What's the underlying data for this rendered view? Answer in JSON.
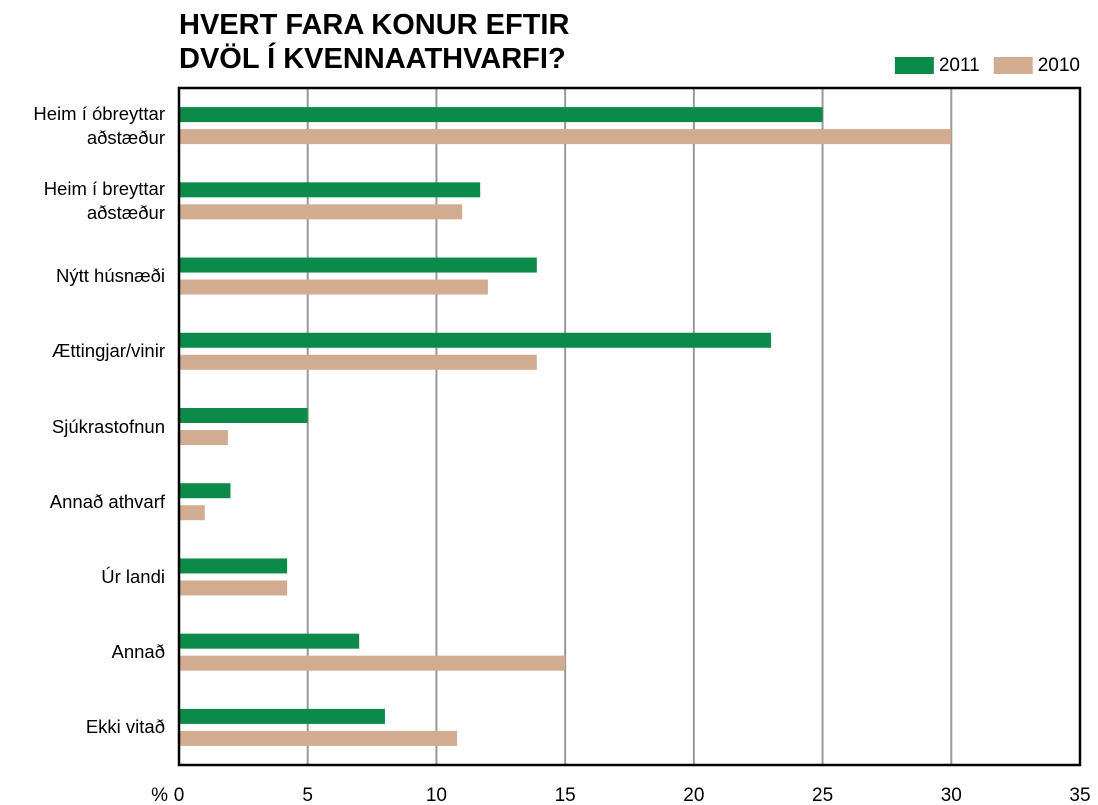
{
  "chart_data": {
    "type": "bar",
    "orientation": "horizontal",
    "title": "HVERT FARA KONUR EFTIR\nDVÖL Í KVENNAATHVARFI?",
    "x_label": "%",
    "categories": [
      "Heim í óbreyttar\naðstæður",
      "Heim í breyttar\naðstæður",
      "Nýtt húsnæði",
      "Ættingjar/vinir",
      "Sjúkrastofnun",
      "Annað athvarf",
      "Úr landi",
      "Annað",
      "Ekki vitað"
    ],
    "series": [
      {
        "name": "2011",
        "color": "#0b8a4a",
        "values": [
          25.0,
          11.7,
          13.9,
          23.0,
          5.0,
          2.0,
          4.2,
          7.0,
          8.0
        ]
      },
      {
        "name": "2010",
        "color": "#d2ac91",
        "values": [
          30.0,
          11.0,
          12.0,
          13.9,
          1.9,
          1.0,
          4.2,
          15.0,
          10.8
        ]
      }
    ],
    "xlim": [
      0,
      35
    ],
    "xticks": [
      0,
      5,
      10,
      15,
      20,
      25,
      30,
      35
    ],
    "grid": true,
    "legend": "top-right"
  }
}
